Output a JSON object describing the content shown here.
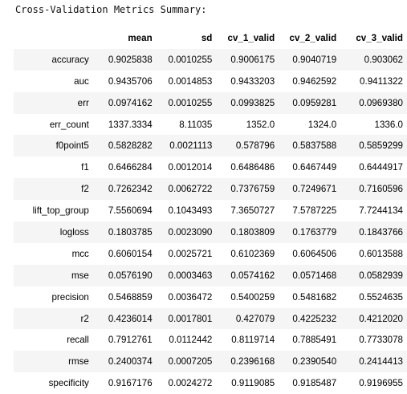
{
  "caption": "Cross-Validation Metrics Summary:",
  "table": {
    "columns": [
      "",
      "mean",
      "sd",
      "cv_1_valid",
      "cv_2_valid",
      "cv_3_valid"
    ],
    "rows": [
      [
        "accuracy",
        "0.9025838",
        "0.0010255",
        "0.9006175",
        "0.9040719",
        "0.903062"
      ],
      [
        "auc",
        "0.9435706",
        "0.0014853",
        "0.9433203",
        "0.9462592",
        "0.9411322"
      ],
      [
        "err",
        "0.0974162",
        "0.0010255",
        "0.0993825",
        "0.0959281",
        "0.0969380"
      ],
      [
        "err_count",
        "1337.3334",
        "8.11035",
        "1352.0",
        "1324.0",
        "1336.0"
      ],
      [
        "f0point5",
        "0.5828282",
        "0.0021113",
        "0.578796",
        "0.5837588",
        "0.5859299"
      ],
      [
        "f1",
        "0.6466284",
        "0.0012014",
        "0.6486486",
        "0.6467449",
        "0.6444917"
      ],
      [
        "f2",
        "0.7262342",
        "0.0062722",
        "0.7376759",
        "0.7249671",
        "0.7160596"
      ],
      [
        "lift_top_group",
        "7.5560694",
        "0.1043493",
        "7.3650727",
        "7.5787225",
        "7.7244134"
      ],
      [
        "logloss",
        "0.1803785",
        "0.0023090",
        "0.1803809",
        "0.1763779",
        "0.1843766"
      ],
      [
        "mcc",
        "0.6060154",
        "0.0025721",
        "0.6102369",
        "0.6064506",
        "0.6013588"
      ],
      [
        "mse",
        "0.0576190",
        "0.0003463",
        "0.0574162",
        "0.0571468",
        "0.0582939"
      ],
      [
        "precision",
        "0.5468859",
        "0.0036472",
        "0.5400259",
        "0.5481682",
        "0.5524635"
      ],
      [
        "r2",
        "0.4236014",
        "0.0017801",
        "0.427079",
        "0.4225232",
        "0.4212020"
      ],
      [
        "recall",
        "0.7912761",
        "0.0112442",
        "0.8119714",
        "0.7885491",
        "0.7733078"
      ],
      [
        "rmse",
        "0.2400374",
        "0.0007205",
        "0.2396168",
        "0.2390540",
        "0.2414413"
      ],
      [
        "specificity",
        "0.9167176",
        "0.0024272",
        "0.9119085",
        "0.9185487",
        "0.9196955"
      ]
    ]
  }
}
